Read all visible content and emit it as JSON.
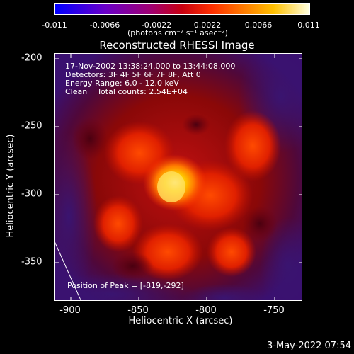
{
  "colorbar": {
    "ticks": [
      "-0.011",
      "-0.0066",
      "-0.0022",
      "0.0022",
      "0.0066",
      "0.011"
    ],
    "units": "(photons cm⁻² s⁻¹ asec⁻²)",
    "colors": [
      "#0000ff",
      "#7a00d0",
      "#c00020",
      "#ff4000",
      "#ffb000",
      "#ffffff"
    ]
  },
  "title": "Reconstructed RHESSI Image",
  "annotations": {
    "time": "17-Nov-2002 13:38:24.000 to 13:44:08.000",
    "detectors": "Detectors: 3F 4F 5F 6F 7F 8F, Att 0",
    "energy": "Energy Range: 6.0 - 12.0 keV",
    "clean": "Clean    Total counts: 2.54E+04",
    "peak": "Position of Peak = [-819,-292]"
  },
  "axes": {
    "xlabel": "Heliocentric X (arcsec)",
    "ylabel": "Heliocentric Y (arcsec)",
    "xticks": [
      "-900",
      "-850",
      "-800",
      "-750"
    ],
    "yticks": [
      "-200",
      "-250",
      "-300",
      "-350"
    ]
  },
  "footer": {
    "datestamp": "3-May-2022 07:54"
  }
}
